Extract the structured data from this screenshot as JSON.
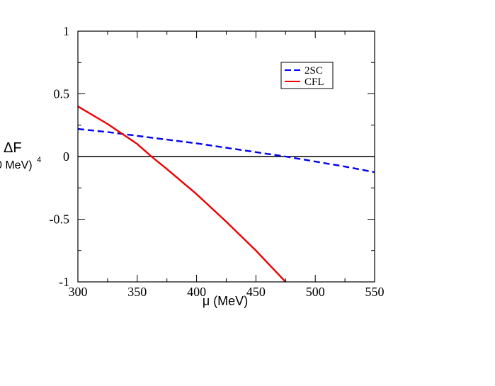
{
  "chart_data": {
    "type": "line",
    "xlabel": "μ (MeV)",
    "ylabel_main": "ΔF",
    "ylabel_sub": "0 MeV)",
    "ylabel_sup": "4",
    "xlim": [
      300,
      550
    ],
    "ylim": [
      -1,
      1
    ],
    "x_ticks": [
      300,
      350,
      400,
      450,
      500,
      550
    ],
    "x_tick_labels": [
      "300",
      "350",
      "400",
      "450",
      "500",
      "550"
    ],
    "y_ticks": [
      -1,
      -0.5,
      0,
      0.5,
      1
    ],
    "y_tick_labels": [
      "-1",
      "-0.5",
      "0",
      "0.5",
      "1"
    ],
    "zero_line": true,
    "grid": false,
    "legend_position": "top-right",
    "series": [
      {
        "name": "2SC",
        "color": "#0000ee",
        "dash": "dashed",
        "x": [
          300,
          325,
          350,
          375,
          400,
          425,
          450,
          475,
          500,
          525,
          550
        ],
        "y": [
          0.22,
          0.195,
          0.165,
          0.135,
          0.105,
          0.07,
          0.035,
          0.0,
          -0.04,
          -0.08,
          -0.125
        ]
      },
      {
        "name": "CFL",
        "color": "#ee0000",
        "dash": "solid",
        "x": [
          300,
          325,
          350,
          362,
          375,
          400,
          425,
          450,
          475
        ],
        "y": [
          0.4,
          0.26,
          0.1,
          0.0,
          -0.1,
          -0.3,
          -0.52,
          -0.75,
          -1.0
        ]
      }
    ]
  }
}
